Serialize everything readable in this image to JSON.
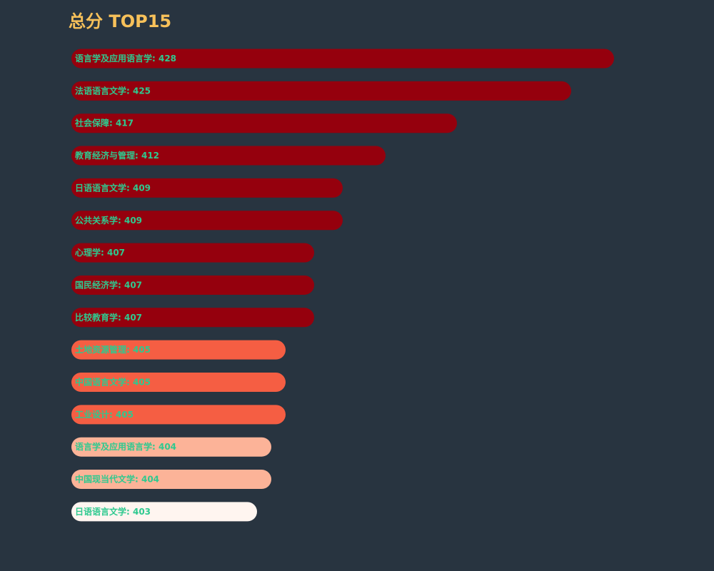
{
  "chart_data": {
    "type": "bar",
    "orientation": "horizontal",
    "title": "总分 TOP15",
    "categories": [
      "语言学及应用语言学",
      "法语语言文学",
      "社会保障",
      "教育经济与管理",
      "日语语言文学",
      "公共关系学",
      "心理学",
      "国民经济学",
      "比较教育学",
      "土地资源管理",
      "中国语言文学",
      "工业设计",
      "语言学及应用语言学",
      "中国现当代文学",
      "日语语言文学"
    ],
    "values": [
      428,
      425,
      417,
      412,
      409,
      409,
      407,
      407,
      407,
      405,
      405,
      405,
      404,
      404,
      403
    ],
    "xlim": [
      390,
      428
    ],
    "grid": false,
    "colors": {
      "background": "#283440",
      "title": "#f7c15a",
      "label": "#2ec98f",
      "bar_scale": [
        "#fff5f0",
        "#fcd2bd",
        "#fc9f80",
        "#fb6a4a",
        "#de2d26",
        "#95000d"
      ]
    }
  }
}
